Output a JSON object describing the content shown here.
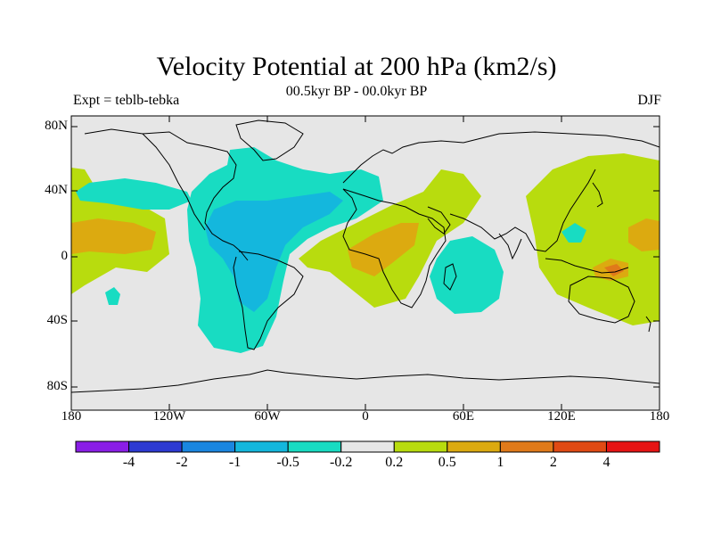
{
  "title": "Velocity Potential at 200 hPa (km2/s)",
  "left_string": "Expt = teblb-tebka",
  "center_string": "00.5kyr BP - 00.0kyr BP",
  "right_string": "DJF",
  "lat_labels": [
    "80N",
    "40N",
    "0",
    "40S",
    "80S"
  ],
  "lon_labels": [
    "180",
    "120W",
    "60W",
    "0",
    "60E",
    "120E",
    "180"
  ],
  "colorbar": {
    "labels": [
      "-4",
      "-2",
      "-1",
      "-0.5",
      "-0.2",
      "0.2",
      "0.5",
      "1",
      "2",
      "4"
    ],
    "colors": [
      "#8a1ee6",
      "#2d3ad2",
      "#1a86e0",
      "#14b7dd",
      "#18dcc2",
      "#e6e6e6",
      "#b8dc0e",
      "#dcaa10",
      "#e07a1a",
      "#e04a14",
      "#e61414"
    ]
  },
  "map_colors": {
    "background": "#e6e6e6",
    "neg_02": "#18dcc2",
    "neg_05": "#14b7dd",
    "pos_02": "#b8dc0e",
    "pos_05": "#dcaa10",
    "pos_1": "#e07a1a"
  }
}
